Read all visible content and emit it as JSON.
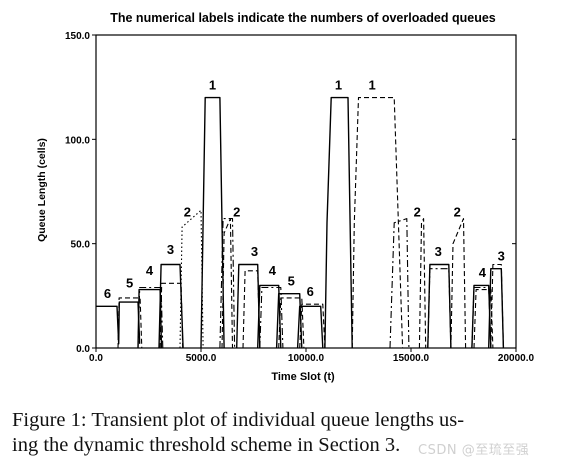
{
  "chart_data": {
    "type": "line",
    "title": "The numerical labels indicate the numbers of overloaded queues",
    "xlabel": "Time Slot  (t)",
    "ylabel": "Queue Length (cells)",
    "xlim": [
      0,
      20000
    ],
    "ylim": [
      0,
      150
    ],
    "xticks": [
      0,
      5000,
      10000,
      15000,
      20000
    ],
    "xtick_labels": [
      "0.0",
      "5000.0",
      "10000.0",
      "15000.0",
      "20000.0"
    ],
    "yticks": [
      0,
      50,
      100,
      150
    ],
    "ytick_labels": [
      "0.0",
      "50.0",
      "100.0",
      "150.0"
    ],
    "grid": false,
    "series": [
      {
        "style": "solid",
        "points": [
          [
            0,
            20
          ],
          [
            1000,
            20
          ],
          [
            1080,
            2
          ],
          [
            1110,
            22
          ],
          [
            2000,
            22
          ],
          [
            2080,
            2
          ]
        ]
      },
      {
        "style": "dashed",
        "points": [
          [
            1050,
            0
          ],
          [
            1100,
            24
          ],
          [
            2100,
            24
          ],
          [
            2180,
            0
          ]
        ]
      },
      {
        "style": "solid",
        "points": [
          [
            2000,
            0
          ],
          [
            2050,
            28
          ],
          [
            3050,
            28
          ],
          [
            3120,
            0
          ]
        ]
      },
      {
        "style": "dashdot",
        "points": [
          [
            2000,
            0
          ],
          [
            2080,
            29
          ],
          [
            3100,
            29
          ],
          [
            3180,
            0
          ]
        ]
      },
      {
        "style": "dashed",
        "points": [
          [
            3050,
            0
          ],
          [
            3130,
            31
          ],
          [
            4050,
            31
          ],
          [
            4130,
            0
          ]
        ]
      },
      {
        "style": "solid",
        "points": [
          [
            3000,
            0
          ],
          [
            3100,
            40
          ],
          [
            4000,
            40
          ],
          [
            4150,
            0
          ]
        ]
      },
      {
        "style": "dotted",
        "points": [
          [
            4000,
            0
          ],
          [
            4100,
            58
          ],
          [
            5000,
            66
          ],
          [
            5100,
            0
          ]
        ]
      },
      {
        "style": "solid",
        "points": [
          [
            5000,
            0
          ],
          [
            5100,
            60
          ],
          [
            5200,
            120
          ],
          [
            5900,
            120
          ],
          [
            6000,
            60
          ],
          [
            6100,
            0
          ]
        ]
      },
      {
        "style": "dashdot",
        "points": [
          [
            5900,
            0
          ],
          [
            6050,
            62
          ],
          [
            6500,
            62
          ],
          [
            6600,
            0
          ]
        ]
      },
      {
        "style": "dashed",
        "points": [
          [
            6000,
            0
          ],
          [
            6100,
            55
          ],
          [
            6400,
            62
          ],
          [
            6500,
            0
          ]
        ]
      },
      {
        "style": "solid",
        "points": [
          [
            6700,
            0
          ],
          [
            6800,
            40
          ],
          [
            7700,
            40
          ],
          [
            7800,
            0
          ]
        ]
      },
      {
        "style": "dashed",
        "points": [
          [
            7000,
            0
          ],
          [
            7100,
            37
          ],
          [
            7700,
            37
          ],
          [
            7800,
            0
          ]
        ]
      },
      {
        "style": "solid",
        "points": [
          [
            7700,
            0
          ],
          [
            7800,
            30
          ],
          [
            8700,
            30
          ],
          [
            8800,
            0
          ]
        ]
      },
      {
        "style": "dashdot",
        "points": [
          [
            7800,
            0
          ],
          [
            7900,
            29
          ],
          [
            8800,
            29
          ],
          [
            8900,
            0
          ]
        ]
      },
      {
        "style": "solid",
        "points": [
          [
            8600,
            0
          ],
          [
            8700,
            26
          ],
          [
            9700,
            26
          ],
          [
            9800,
            0
          ]
        ]
      },
      {
        "style": "dashed",
        "points": [
          [
            8700,
            0
          ],
          [
            8800,
            24
          ],
          [
            9800,
            24
          ],
          [
            9900,
            0
          ]
        ]
      },
      {
        "style": "solid",
        "points": [
          [
            9600,
            0
          ],
          [
            9700,
            20
          ],
          [
            10700,
            20
          ],
          [
            10800,
            0
          ]
        ]
      },
      {
        "style": "dashed",
        "points": [
          [
            9700,
            0
          ],
          [
            9800,
            21
          ],
          [
            10800,
            21
          ],
          [
            10900,
            0
          ]
        ]
      },
      {
        "style": "solid",
        "points": [
          [
            10900,
            0
          ],
          [
            11000,
            60
          ],
          [
            11200,
            120
          ],
          [
            12000,
            120
          ],
          [
            12100,
            60
          ],
          [
            12200,
            0
          ]
        ]
      },
      {
        "style": "dashed",
        "points": [
          [
            12200,
            0
          ],
          [
            12300,
            60
          ],
          [
            12500,
            120
          ],
          [
            14200,
            120
          ],
          [
            14400,
            60
          ],
          [
            14600,
            0
          ]
        ]
      },
      {
        "style": "dashdot",
        "points": [
          [
            14000,
            0
          ],
          [
            14200,
            60
          ],
          [
            14800,
            62
          ],
          [
            14900,
            0
          ]
        ]
      },
      {
        "style": "dashed",
        "points": [
          [
            15400,
            0
          ],
          [
            15500,
            60
          ],
          [
            15600,
            62
          ],
          [
            15700,
            0
          ]
        ]
      },
      {
        "style": "solid",
        "points": [
          [
            15800,
            0
          ],
          [
            15900,
            40
          ],
          [
            16800,
            40
          ],
          [
            16900,
            0
          ]
        ]
      },
      {
        "style": "dashdot",
        "points": [
          [
            15800,
            0
          ],
          [
            15900,
            38
          ],
          [
            16800,
            38
          ],
          [
            16900,
            0
          ]
        ]
      },
      {
        "style": "dashed",
        "points": [
          [
            16900,
            0
          ],
          [
            17000,
            50
          ],
          [
            17500,
            62
          ],
          [
            17600,
            0
          ]
        ]
      },
      {
        "style": "solid",
        "points": [
          [
            17900,
            0
          ],
          [
            18000,
            30
          ],
          [
            18700,
            30
          ],
          [
            18800,
            0
          ]
        ]
      },
      {
        "style": "dashdot",
        "points": [
          [
            17900,
            0
          ],
          [
            18000,
            29
          ],
          [
            18700,
            29
          ],
          [
            18800,
            0
          ]
        ]
      },
      {
        "style": "dashed",
        "points": [
          [
            18000,
            0
          ],
          [
            18100,
            28
          ],
          [
            18800,
            28
          ],
          [
            18900,
            0
          ]
        ]
      },
      {
        "style": "solid",
        "points": [
          [
            18700,
            0
          ],
          [
            18800,
            38
          ],
          [
            19300,
            38
          ],
          [
            19400,
            0
          ]
        ]
      },
      {
        "style": "dashed",
        "points": [
          [
            18800,
            0
          ],
          [
            18900,
            40
          ],
          [
            19300,
            40
          ],
          [
            19400,
            0
          ]
        ]
      }
    ],
    "annotations": [
      {
        "text": "6",
        "x": 550,
        "y": 24
      },
      {
        "text": "5",
        "x": 1600,
        "y": 29
      },
      {
        "text": "4",
        "x": 2550,
        "y": 35
      },
      {
        "text": "3",
        "x": 3550,
        "y": 45
      },
      {
        "text": "2",
        "x": 4350,
        "y": 63
      },
      {
        "text": "1",
        "x": 5550,
        "y": 124
      },
      {
        "text": "2",
        "x": 6700,
        "y": 63
      },
      {
        "text": "3",
        "x": 7550,
        "y": 44
      },
      {
        "text": "4",
        "x": 8400,
        "y": 35
      },
      {
        "text": "5",
        "x": 9300,
        "y": 30
      },
      {
        "text": "6",
        "x": 10200,
        "y": 25
      },
      {
        "text": "1",
        "x": 11550,
        "y": 124
      },
      {
        "text": "1",
        "x": 13150,
        "y": 124
      },
      {
        "text": "2",
        "x": 15300,
        "y": 63
      },
      {
        "text": "3",
        "x": 16300,
        "y": 44
      },
      {
        "text": "2",
        "x": 17200,
        "y": 63
      },
      {
        "text": "4",
        "x": 18400,
        "y": 34
      },
      {
        "text": "3",
        "x": 19300,
        "y": 42
      }
    ]
  },
  "caption": "Figure 1: Transient plot of individual queue lengths us-\ning the dynamic threshold scheme in Section 3.",
  "watermark": "CSDN @至琉至强"
}
